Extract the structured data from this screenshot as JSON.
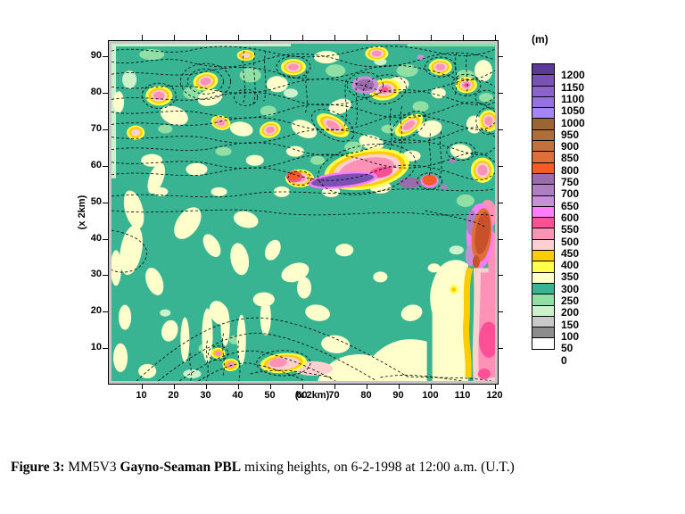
{
  "figure": {
    "caption_parts": {
      "label": "Figure 3:",
      "pre": " MM5V3 ",
      "bold": "Gayno-Seaman PBL",
      "post": " mixing heights, on 6-2-1998 at 12:00 a.m. (U.T.)"
    }
  },
  "axes": {
    "x_label": "(x 2km)",
    "y_label": "(x 2km)",
    "x_ticks": [
      10,
      20,
      30,
      40,
      50,
      60,
      70,
      80,
      90,
      100,
      110,
      120
    ],
    "y_ticks": [
      10,
      20,
      30,
      40,
      50,
      60,
      70,
      80,
      90
    ]
  },
  "legend": {
    "title": "(m)",
    "labels": [
      "1200",
      "1150",
      "1100",
      "1050",
      "1000",
      "950",
      "900",
      "850",
      "800",
      "750",
      "700",
      "650",
      "600",
      "550",
      "500",
      "450",
      "400",
      "350",
      "300",
      "250",
      "200",
      "150",
      "100",
      "50",
      "0"
    ],
    "colors": [
      "#5a3a96",
      "#7a52b4",
      "#8a64cc",
      "#9672e0",
      "#a684f2",
      "#996633",
      "#ad6e39",
      "#c0723a",
      "#dd7038",
      "#f55c25",
      "#9a6caa",
      "#ad7fc0",
      "#c98fd6",
      "#fe7dfa",
      "#fb4f96",
      "#fc92b5",
      "#fdd0d0",
      "#ffcc00",
      "#ffff4d",
      "#ffffcc",
      "#38b492",
      "#90dfa5",
      "#ccf2cc",
      "#c9c9c9",
      "#8c8c8c",
      "#ffffff"
    ]
  },
  "palette": {
    "map_background_teal": "#38b492",
    "cream": "#ffffcc",
    "yellow": "#ffff4d",
    "gold": "#ffcc00",
    "pale_pink": "#fdd0d0",
    "pink": "#fc92b5",
    "deep_pink": "#fb4f96",
    "magenta": "#fe7dfa",
    "orange_red": "#f55c25",
    "brick": "#c8502a",
    "contour_line": "#000000",
    "frame_gray": "#c6c6c6"
  },
  "chart_data": {
    "type": "heatmap",
    "title": "MM5V3 Gayno-Seaman PBL mixing heights, 6-2-1998 12:00 a.m. (U.T.)",
    "units": "m",
    "xlabel": "(x 2km)",
    "ylabel": "(x 2km)",
    "x_range": [
      0,
      120
    ],
    "y_range": [
      0,
      90
    ],
    "x_tick_step": 10,
    "y_tick_step": 10,
    "levels_m": [
      0,
      50,
      100,
      150,
      200,
      250,
      300,
      350,
      400,
      450,
      500,
      550,
      600,
      650,
      700,
      750,
      800,
      850,
      900,
      950,
      1000,
      1050,
      1100,
      1150,
      1200
    ],
    "colors_low_to_high": [
      "#ffffff",
      "#8c8c8c",
      "#c9c9c9",
      "#ccf2cc",
      "#90dfa5",
      "#38b492",
      "#ffffcc",
      "#ffff4d",
      "#ffcc00",
      "#fdd0d0",
      "#fc92b5",
      "#fb4f96",
      "#fe7dfa",
      "#c98fd6",
      "#ad7fc0",
      "#9a6caa",
      "#f55c25",
      "#dd7038",
      "#c0723a",
      "#ad6e39",
      "#996633",
      "#a684f2",
      "#9672e0",
      "#8a64cc",
      "#7a52b4",
      "#5a3a96"
    ],
    "legend_position": "right",
    "grid": false,
    "description": "Filled contour field, mostly 200-250 m (teal) with 250-300 m cream patches; northern third (y>45) has dense dashed overlay contours with many 450-550 m pink cells ringed by 300-400 m yellow/gold, a few 600-750 m purple bands and isolated 750-800 m orange cores near y=48-50; maximum 850-900 m cell on the eastern boundary near y=40-48 fringed by 600-700 m purple; a 450-550 m pink strip runs down the eastern edge to the SE corner over a large 250-300 m cream area; small 450-500 m cells with arch-shaped dashed contours near the southern edge at x=25-60."
  }
}
